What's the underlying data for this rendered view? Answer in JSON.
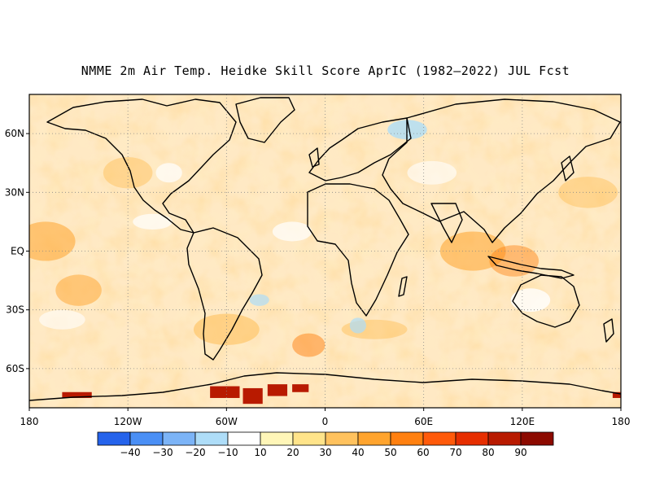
{
  "title": "NMME 2m Air Temp. Heidke Skill Score AprIC (1982–2022) JUL Fcst",
  "lat_labels": [
    "60N",
    "30N",
    "EQ",
    "30S",
    "60S"
  ],
  "lon_labels": [
    "180",
    "120W",
    "60W",
    "0",
    "60E",
    "120E",
    "180"
  ],
  "colorbar": {
    "labels": [
      "−40",
      "−30",
      "−20",
      "−10",
      "10",
      "20",
      "30",
      "40",
      "50",
      "60",
      "70",
      "80",
      "90"
    ],
    "colors": [
      "#2563eb",
      "#4a8ff5",
      "#7cb4f7",
      "#aeddf8",
      "#ffffff",
      "#fff6b8",
      "#ffe48a",
      "#ffc25e",
      "#ffa42e",
      "#ff8010",
      "#ff5a0a",
      "#e62e00",
      "#b81a00",
      "#8c0a00"
    ]
  },
  "map": {
    "projection": "equirectangular",
    "lon_range": [
      -180,
      180
    ],
    "lat_range": [
      -80,
      80
    ],
    "variable": "Heidke Skill Score",
    "coastline_color": "#000000",
    "grid_style": "dotted"
  }
}
